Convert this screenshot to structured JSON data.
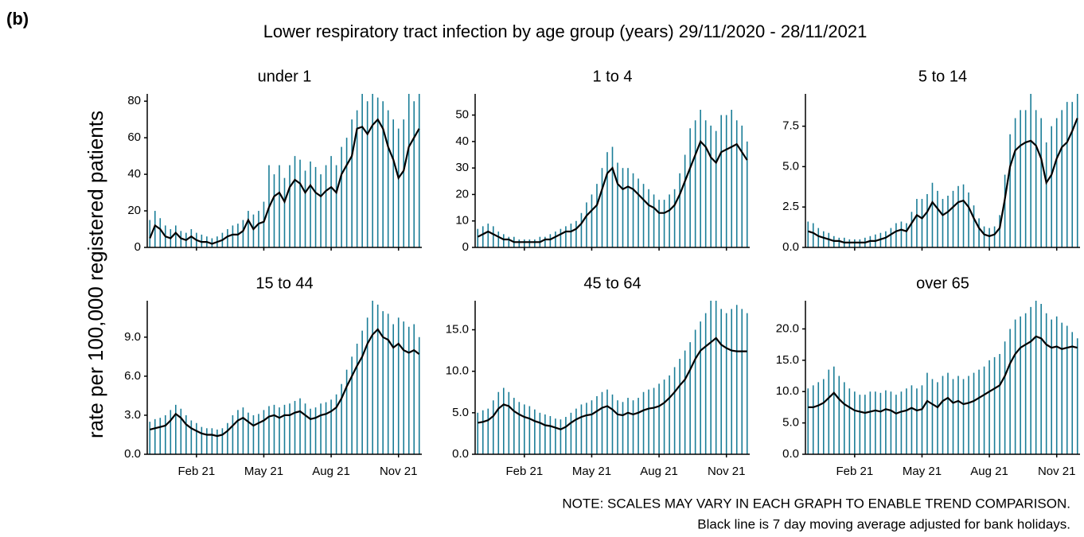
{
  "figure_label": "(b)",
  "chart_data": {
    "type": "line",
    "title": "Lower respiratory tract infection by age group (years) 29/11/2020 - 28/11/2021",
    "ylabel": "rate per 100,000 registered patients",
    "notes": [
      "NOTE: SCALES MAY VARY IN EACH GRAPH TO ENABLE TREND COMPARISON.",
      "Black line is 7 day moving average adjusted for bank holidays."
    ],
    "categories": [
      null,
      null,
      null,
      null,
      null,
      null,
      null,
      null,
      null,
      "Feb 21",
      null,
      null,
      null,
      null,
      null,
      null,
      null,
      null,
      null,
      null,
      null,
      null,
      "May 21",
      null,
      null,
      null,
      null,
      null,
      null,
      null,
      null,
      null,
      null,
      null,
      null,
      "Aug 21",
      null,
      null,
      null,
      null,
      null,
      null,
      null,
      null,
      null,
      null,
      null,
      null,
      "Nov 21",
      null,
      null,
      null,
      null
    ],
    "panels": [
      {
        "title": "under 1",
        "ylim": [
          0,
          84
        ],
        "yticks": [
          0,
          20,
          40,
          60,
          80
        ],
        "series": [
          {
            "type": "bar",
            "color": "#1a7d97",
            "values": [
              15,
              20,
              16,
              12,
              10,
              12,
              9,
              8,
              10,
              8,
              7,
              6,
              5,
              6,
              8,
              10,
              12,
              13,
              15,
              20,
              18,
              20,
              25,
              45,
              40,
              45,
              38,
              45,
              50,
              48,
              42,
              47,
              44,
              40,
              45,
              50,
              45,
              55,
              60,
              70,
              75,
              84,
              80,
              84,
              82,
              80,
              75,
              70,
              65,
              70,
              84,
              80,
              84
            ]
          },
          {
            "type": "line",
            "color": "#000000",
            "values": [
              5,
              12,
              10,
              6,
              5,
              8,
              5,
              4,
              6,
              4,
              3,
              3,
              2,
              3,
              4,
              6,
              7,
              7,
              9,
              15,
              10,
              13,
              14,
              22,
              28,
              30,
              25,
              33,
              37,
              35,
              30,
              34,
              30,
              28,
              31,
              33,
              30,
              40,
              45,
              50,
              65,
              66,
              62,
              67,
              70,
              65,
              55,
              48,
              38,
              42,
              55,
              60,
              65
            ]
          }
        ]
      },
      {
        "title": "1 to 4",
        "ylim": [
          0,
          58
        ],
        "yticks": [
          0,
          10,
          20,
          30,
          40,
          50
        ],
        "series": [
          {
            "type": "bar",
            "color": "#1a7d97",
            "values": [
              7,
              8,
              9,
              8,
              6,
              5,
              4,
              4,
              3,
              3,
              3,
              3,
              4,
              4,
              5,
              6,
              7,
              8,
              9,
              10,
              13,
              17,
              20,
              24,
              30,
              36,
              38,
              32,
              30,
              30,
              28,
              26,
              24,
              22,
              20,
              18,
              18,
              20,
              22,
              28,
              35,
              45,
              48,
              52,
              48,
              46,
              44,
              50,
              50,
              52,
              48,
              46,
              40
            ]
          },
          {
            "type": "line",
            "color": "#000000",
            "values": [
              4,
              5,
              6,
              5,
              4,
              3,
              3,
              2,
              2,
              2,
              2,
              2,
              2,
              3,
              3,
              4,
              5,
              6,
              6,
              7,
              9,
              12,
              14,
              16,
              22,
              28,
              30,
              24,
              22,
              23,
              22,
              20,
              18,
              16,
              15,
              13,
              13,
              14,
              16,
              20,
              25,
              30,
              35,
              40,
              38,
              34,
              32,
              36,
              37,
              38,
              39,
              36,
              33
            ]
          }
        ]
      },
      {
        "title": "5 to 14",
        "ylim": [
          0,
          9.5
        ],
        "yticks": [
          {
            "value": 0,
            "label": "0.0"
          },
          2.5,
          {
            "value": 5,
            "label": "5.0"
          },
          7.5
        ],
        "series": [
          {
            "type": "bar",
            "color": "#1a7d97",
            "values": [
              1.6,
              1.5,
              1.2,
              1.0,
              0.9,
              0.7,
              0.6,
              0.6,
              0.5,
              0.5,
              0.5,
              0.6,
              0.7,
              0.8,
              0.9,
              1.0,
              1.2,
              1.5,
              1.6,
              1.5,
              2.2,
              3.0,
              3.0,
              3.3,
              4.0,
              3.5,
              3.0,
              3.2,
              3.5,
              3.8,
              3.9,
              3.4,
              2.6,
              1.8,
              1.3,
              1.2,
              1.3,
              2.0,
              4.5,
              7.0,
              8.0,
              8.5,
              8.5,
              9.5,
              8.5,
              8.0,
              6.5,
              7.5,
              8.0,
              8.5,
              9.0,
              9.0,
              9.5
            ]
          },
          {
            "type": "line",
            "color": "#000000",
            "values": [
              1.0,
              0.9,
              0.7,
              0.6,
              0.5,
              0.4,
              0.4,
              0.3,
              0.3,
              0.3,
              0.3,
              0.3,
              0.4,
              0.4,
              0.5,
              0.6,
              0.8,
              1.0,
              1.1,
              1.0,
              1.5,
              2.0,
              1.8,
              2.2,
              2.8,
              2.4,
              2.0,
              2.2,
              2.5,
              2.8,
              2.9,
              2.5,
              1.8,
              1.2,
              0.8,
              0.7,
              0.8,
              1.2,
              3.0,
              5.0,
              6.0,
              6.3,
              6.5,
              6.6,
              6.3,
              5.5,
              4.0,
              4.5,
              5.5,
              6.2,
              6.5,
              7.2,
              8.0
            ]
          }
        ]
      },
      {
        "title": "15 to 44",
        "ylim": [
          0,
          11.8
        ],
        "yticks": [
          {
            "value": 0,
            "label": "0.0"
          },
          {
            "value": 3,
            "label": "3.0"
          },
          {
            "value": 6,
            "label": "6.0"
          },
          {
            "value": 9,
            "label": "9.0"
          }
        ],
        "series": [
          {
            "type": "bar",
            "color": "#1a7d97",
            "values": [
              2.5,
              2.7,
              2.8,
              3.0,
              3.4,
              3.8,
              3.5,
              3.0,
              2.6,
              2.4,
              2.1,
              2.0,
              2.0,
              1.9,
              2.0,
              2.4,
              3.0,
              3.4,
              3.6,
              3.2,
              3.0,
              3.1,
              3.4,
              3.7,
              3.8,
              3.6,
              3.8,
              3.9,
              4.1,
              4.3,
              3.9,
              3.5,
              3.6,
              3.9,
              4.0,
              4.2,
              4.6,
              5.4,
              6.5,
              7.5,
              8.5,
              9.5,
              10.5,
              11.8,
              11.5,
              11.0,
              10.8,
              10.0,
              10.5,
              10.2,
              9.8,
              10.0,
              9.0
            ]
          },
          {
            "type": "line",
            "color": "#000000",
            "values": [
              1.9,
              2.0,
              2.1,
              2.2,
              2.6,
              3.1,
              2.8,
              2.3,
              2.0,
              1.8,
              1.6,
              1.5,
              1.5,
              1.4,
              1.5,
              1.8,
              2.2,
              2.6,
              2.8,
              2.5,
              2.2,
              2.4,
              2.6,
              2.9,
              3.0,
              2.8,
              3.0,
              3.0,
              3.2,
              3.3,
              3.0,
              2.7,
              2.8,
              3.0,
              3.1,
              3.3,
              3.6,
              4.3,
              5.2,
              6.0,
              6.8,
              7.5,
              8.5,
              9.2,
              9.6,
              9.0,
              8.8,
              8.2,
              8.5,
              8.0,
              7.8,
              8.0,
              7.7
            ]
          }
        ]
      },
      {
        "title": "45 to 64",
        "ylim": [
          0,
          18.5
        ],
        "yticks": [
          {
            "value": 0,
            "label": "0.0"
          },
          {
            "value": 5,
            "label": "5.0"
          },
          {
            "value": 10,
            "label": "10.0"
          },
          {
            "value": 15,
            "label": "15.0"
          }
        ],
        "series": [
          {
            "type": "bar",
            "color": "#1a7d97",
            "values": [
              5.0,
              5.3,
              5.5,
              6.5,
              7.5,
              8.0,
              7.5,
              6.8,
              6.3,
              6.0,
              5.8,
              5.4,
              5.0,
              4.8,
              4.6,
              4.3,
              4.2,
              4.5,
              5.0,
              5.5,
              6.0,
              6.2,
              6.5,
              7.0,
              7.5,
              7.8,
              7.2,
              6.5,
              6.3,
              6.8,
              6.5,
              6.8,
              7.5,
              7.8,
              8.0,
              8.5,
              9.0,
              9.5,
              10.5,
              11.5,
              12.5,
              13.5,
              15.0,
              16.0,
              17.0,
              18.5,
              18.5,
              17.5,
              17.0,
              17.5,
              18.0,
              17.5,
              17.0
            ]
          },
          {
            "type": "line",
            "color": "#000000",
            "values": [
              3.8,
              3.9,
              4.1,
              4.6,
              5.5,
              6.0,
              5.8,
              5.2,
              4.8,
              4.5,
              4.3,
              4.0,
              3.8,
              3.5,
              3.4,
              3.2,
              3.0,
              3.3,
              3.8,
              4.2,
              4.5,
              4.7,
              4.8,
              5.2,
              5.6,
              5.8,
              5.4,
              4.8,
              4.7,
              5.0,
              4.8,
              5.0,
              5.3,
              5.5,
              5.6,
              5.8,
              6.2,
              6.8,
              7.5,
              8.3,
              9.0,
              10.2,
              11.5,
              12.5,
              13.0,
              13.5,
              14.0,
              13.2,
              12.8,
              12.5,
              12.4,
              12.4,
              12.4
            ]
          }
        ]
      },
      {
        "title": "over 65",
        "ylim": [
          0,
          24.5
        ],
        "yticks": [
          {
            "value": 0,
            "label": "0.0"
          },
          {
            "value": 5,
            "label": "5.0"
          },
          {
            "value": 10,
            "label": "10.0"
          },
          {
            "value": 15,
            "label": "15.0"
          },
          {
            "value": 20,
            "label": "20.0"
          }
        ],
        "series": [
          {
            "type": "bar",
            "color": "#1a7d97",
            "values": [
              10.5,
              11.0,
              11.5,
              12.0,
              13.5,
              14.0,
              12.5,
              11.5,
              10.5,
              10.0,
              9.5,
              9.5,
              10.0,
              10.0,
              9.8,
              10.2,
              10.0,
              9.5,
              10.0,
              10.5,
              11.0,
              10.5,
              11.0,
              13.0,
              12.0,
              11.5,
              12.5,
              13.0,
              12.0,
              12.5,
              12.0,
              12.5,
              13.0,
              13.5,
              14.0,
              15.0,
              15.5,
              16.0,
              18.0,
              20.0,
              21.5,
              22.0,
              22.5,
              23.5,
              24.5,
              24.0,
              22.5,
              21.5,
              22.0,
              21.0,
              20.5,
              19.5,
              18.5
            ]
          },
          {
            "type": "line",
            "color": "#000000",
            "values": [
              7.5,
              7.5,
              7.8,
              8.2,
              9.0,
              9.8,
              8.8,
              8.0,
              7.5,
              7.0,
              6.8,
              6.6,
              6.8,
              7.0,
              6.8,
              7.2,
              7.0,
              6.5,
              6.8,
              7.0,
              7.4,
              7.0,
              7.2,
              8.5,
              8.0,
              7.5,
              8.5,
              9.0,
              8.2,
              8.5,
              8.0,
              8.2,
              8.5,
              9.0,
              9.5,
              10.0,
              10.5,
              11.0,
              12.5,
              14.5,
              16.0,
              17.0,
              17.5,
              18.0,
              18.8,
              18.5,
              17.5,
              17.0,
              17.2,
              16.8,
              17.0,
              17.2,
              17.0
            ]
          }
        ]
      }
    ]
  }
}
